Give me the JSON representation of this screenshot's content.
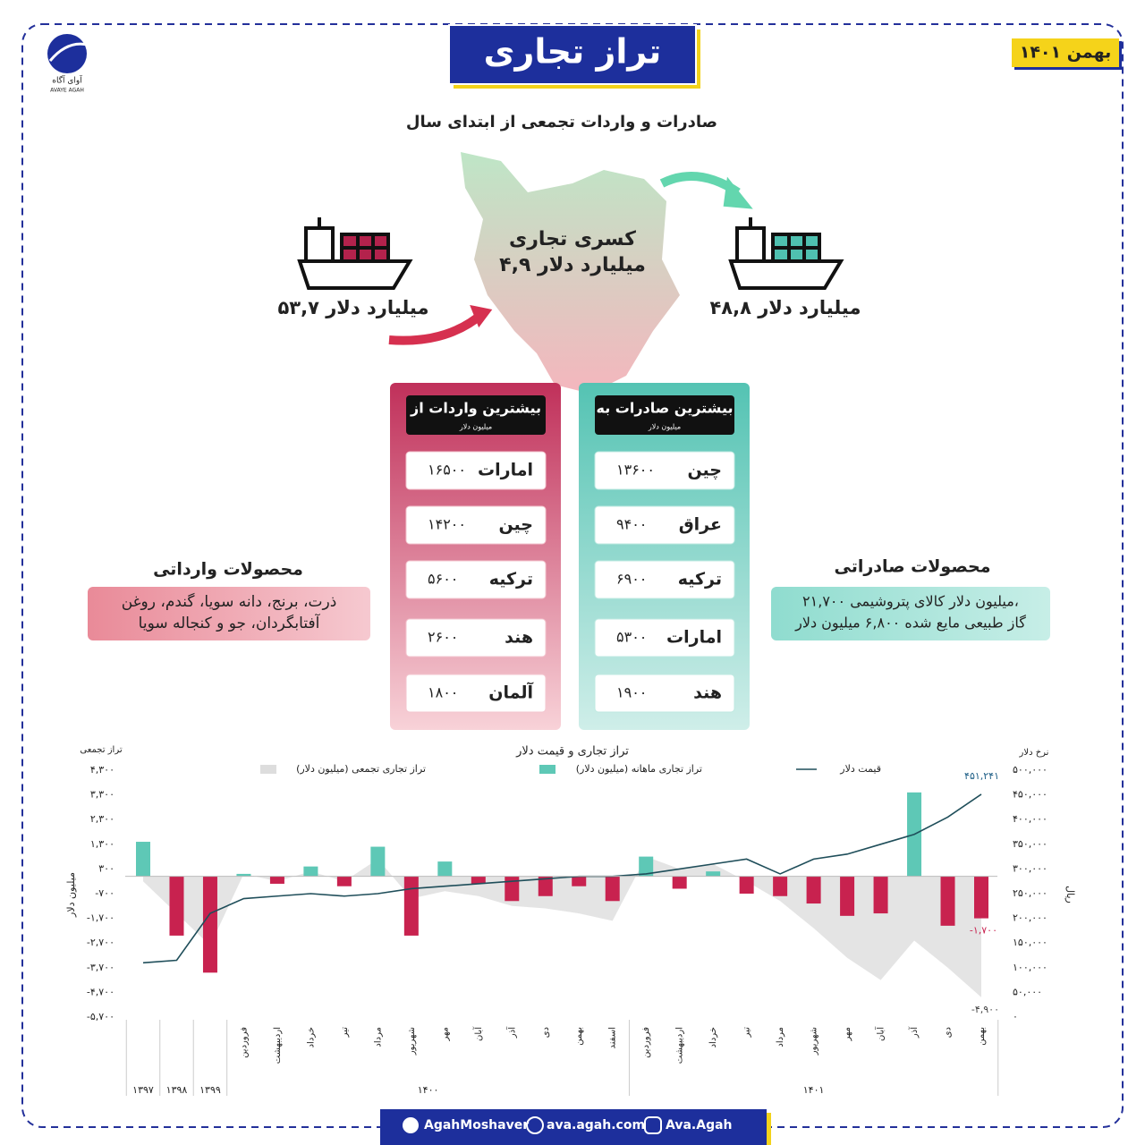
{
  "logo": {
    "name": "آوای آگاه",
    "latin": "AVAYE AGAH"
  },
  "header": {
    "title": "تراز تجاری",
    "date": "بهمن ۱۴۰۱",
    "subtitle": "صادرات و واردات تجمعی از ابتدای سال"
  },
  "summary": {
    "imports": "۵۳,۷ میلیارد دلار",
    "exports": "۴۸,۸ میلیارد دلار",
    "deficit_label": "کسری تجاری",
    "deficit": "۴,۹ میلیارد دلار"
  },
  "imports_table": {
    "title": "بیشترین واردات از",
    "unit": "میلیون دلار",
    "rows": [
      [
        "امارات",
        "۱۶۵۰۰"
      ],
      [
        "چین",
        "۱۴۲۰۰"
      ],
      [
        "ترکیه",
        "۵۶۰۰"
      ],
      [
        "هند",
        "۲۶۰۰"
      ],
      [
        "آلمان",
        "۱۸۰۰"
      ]
    ]
  },
  "exports_table": {
    "title": "بیشترین صادرات به",
    "unit": "میلیون دلار",
    "rows": [
      [
        "چین",
        "۱۳۶۰۰"
      ],
      [
        "عراق",
        "۹۴۰۰"
      ],
      [
        "ترکیه",
        "۶۹۰۰"
      ],
      [
        "امارات",
        "۵۳۰۰"
      ],
      [
        "هند",
        "۱۹۰۰"
      ]
    ]
  },
  "import_products": {
    "title": "محصولات وارداتی",
    "lines": [
      "ذرت، برنج، دانه سویا، گندم، روغن",
      "آفتابگردان، جو و کنجاله سویا"
    ]
  },
  "export_products": {
    "title": "محصولات صادراتی",
    "lines": [
      "۲۱,۷۰۰ میلیون دلار کالای پتروشیمی،",
      "گاز طبیعی مایع شده ۶,۸۰۰ میلیون دلار"
    ]
  },
  "chart_data": {
    "type": "combo",
    "title": "تراز تجاری و قیمت دلار",
    "y_label": "میلیون دلار",
    "y_top_label": "تراز تجمعی",
    "y2_label": "ریال",
    "y2_top_label": "نرخ دلار",
    "categories": [
      null,
      null,
      null,
      "فروردین",
      "اردیبهشت",
      "خرداد",
      "تیر",
      "مرداد",
      "شهریور",
      "مهر",
      "آبان",
      "آذر",
      "دی",
      "بهمن",
      "اسفند",
      "فروردین",
      "اردیبهشت",
      "خرداد",
      "تیر",
      "مرداد",
      "شهریور",
      "مهر",
      "آبان",
      "آذر",
      "دی",
      "بهمن"
    ],
    "year_labels": [
      "۱۳۹۷",
      "۱۳۹۸",
      "۱۳۹۹",
      "۱۴۰۰",
      "۱۴۰۱"
    ],
    "ylim": [
      -5700,
      4300
    ],
    "yticks": [
      {
        "value": 4300,
        "label": "۴,۳۰۰"
      },
      {
        "value": 3300,
        "label": "۳,۳۰۰"
      },
      {
        "value": 2300,
        "label": "۲,۳۰۰"
      },
      {
        "value": 1300,
        "label": "۱,۳۰۰"
      },
      {
        "value": 300,
        "label": "۳۰۰"
      },
      {
        "value": -700,
        "label": "-۷۰۰"
      },
      {
        "value": -1700,
        "label": "-۱,۷۰۰"
      },
      {
        "value": -2700,
        "label": "-۲,۷۰۰"
      },
      {
        "value": -3700,
        "label": "-۳,۷۰۰"
      },
      {
        "value": -4700,
        "label": "-۴,۷۰۰"
      },
      {
        "value": -5700,
        "label": "-۵,۷۰۰"
      }
    ],
    "y2lim": [
      0,
      500000
    ],
    "y2ticks": [
      {
        "value": 500000,
        "label": "۵۰۰,۰۰۰"
      },
      {
        "value": 450000,
        "label": "۴۵۰,۰۰۰"
      },
      {
        "value": 400000,
        "label": "۴۰۰,۰۰۰"
      },
      {
        "value": 350000,
        "label": "۳۵۰,۰۰۰"
      },
      {
        "value": 300000,
        "label": "۳۰۰,۰۰۰"
      },
      {
        "value": 250000,
        "label": "۲۵۰,۰۰۰"
      },
      {
        "value": 200000,
        "label": "۲۰۰,۰۰۰"
      },
      {
        "value": 150000,
        "label": "۱۵۰,۰۰۰"
      },
      {
        "value": 100000,
        "label": "۱۰۰,۰۰۰"
      },
      {
        "value": 50000,
        "label": "۵۰,۰۰۰"
      },
      {
        "value": 0,
        "label": "۰"
      }
    ],
    "series": [
      {
        "name": "تراز تجاری تجمعی (میلیون دلار)",
        "type": "area",
        "color": "#dddddd",
        "values": [
          -200,
          -1500,
          -2800,
          100,
          -200,
          200,
          -200,
          700,
          -900,
          -600,
          -800,
          -1200,
          -1300,
          -1500,
          -1800,
          800,
          300,
          500,
          -200,
          -1000,
          -2100,
          -3300,
          -4200,
          -2600,
          -3700,
          -4900
        ],
        "value_labels": [
          null,
          null,
          null,
          null,
          null,
          null,
          null,
          null,
          null,
          null,
          null,
          null,
          null,
          null,
          null,
          null,
          null,
          null,
          null,
          null,
          null,
          null,
          null,
          null,
          null,
          "-۴,۹۰۰"
        ]
      },
      {
        "name": "تراز تجاری ماهانه (میلیون دلار)",
        "type": "bar",
        "color": "#5ec8b6",
        "negative_color": "#c8224f",
        "values": [
          1400,
          -2400,
          -3900,
          100,
          -300,
          400,
          -400,
          1200,
          -2400,
          600,
          -300,
          -1000,
          -800,
          -400,
          -1000,
          800,
          -500,
          200,
          -700,
          -800,
          -1100,
          -1600,
          -1500,
          3400,
          -2000,
          -1700
        ],
        "value_labels": [
          null,
          null,
          null,
          null,
          null,
          null,
          null,
          null,
          null,
          null,
          null,
          null,
          null,
          null,
          null,
          null,
          null,
          null,
          null,
          null,
          null,
          null,
          null,
          null,
          null,
          "-۱,۷۰۰"
        ]
      },
      {
        "name": "قیمت دلار",
        "type": "line",
        "axis": "y2",
        "color": "#1f4e5a",
        "values": [
          110000,
          115000,
          210000,
          240000,
          245000,
          250000,
          245000,
          250000,
          260000,
          265000,
          270000,
          275000,
          280000,
          285000,
          285000,
          290000,
          300000,
          310000,
          320000,
          290000,
          320000,
          330000,
          350000,
          370000,
          405000,
          451241
        ],
        "value_labels": [
          null,
          null,
          null,
          null,
          null,
          null,
          null,
          null,
          null,
          null,
          null,
          null,
          null,
          null,
          null,
          null,
          null,
          null,
          null,
          null,
          null,
          null,
          null,
          null,
          null,
          "۴۵۱,۲۴۱"
        ]
      }
    ]
  },
  "footer": {
    "telegram": "AgahMoshaver",
    "web": "ava.agah.com",
    "instagram": "Ava.Agah"
  }
}
